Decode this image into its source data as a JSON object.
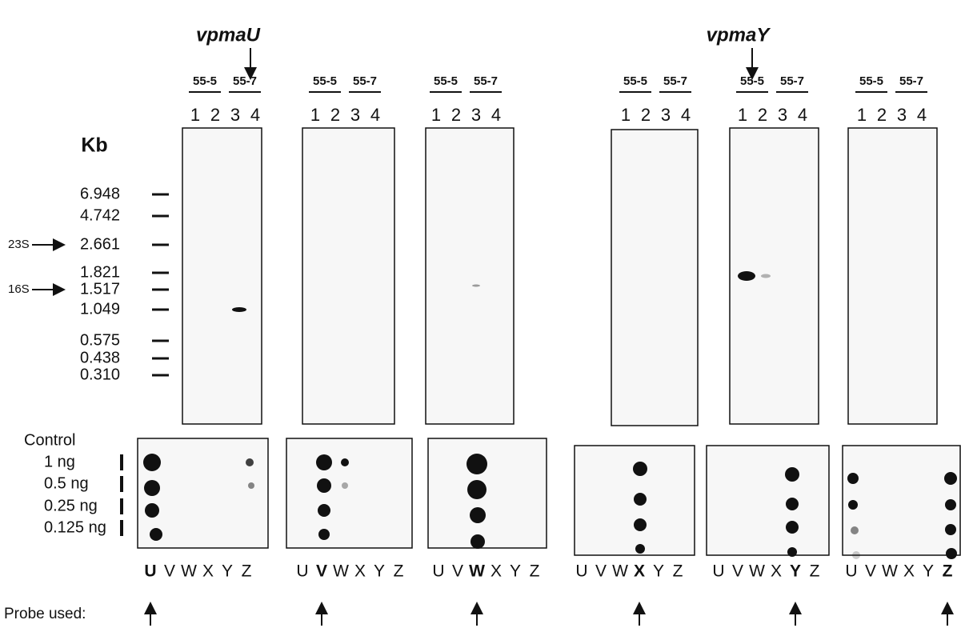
{
  "genes": [
    "vpmaU",
    "vpmaY"
  ],
  "size_unit": "Kb",
  "size_markers": [
    "6.948",
    "4.742",
    "2.661",
    "1.821",
    "1.517",
    "1.049",
    "0.575",
    "0.438",
    "0.310"
  ],
  "rrna_markers": [
    {
      "label": "23S",
      "marker": 2
    },
    {
      "label": "16S",
      "marker": 4
    }
  ],
  "control_label": "Control",
  "amounts": [
    "1 ng",
    "0.5 ng",
    "0.25 ng",
    "0.125 ng"
  ],
  "probe_label": "Probe used:",
  "panels": [
    {
      "strains": [
        "55-5",
        "55-7"
      ],
      "lanes": [
        "1",
        "2",
        "3",
        "4"
      ],
      "probes": [
        {
          "text": "U",
          "bold": true
        },
        {
          "text": "V"
        },
        {
          "text": "W"
        },
        {
          "text": "X"
        },
        {
          "text": "Y"
        },
        {
          "text": "Z"
        }
      ]
    },
    {
      "strains": [
        "55-5",
        "55-7"
      ],
      "lanes": [
        "1",
        "2",
        "3",
        "4"
      ],
      "probes": [
        {
          "text": "U"
        },
        {
          "text": "V",
          "bold": true
        },
        {
          "text": "W"
        },
        {
          "text": "X"
        },
        {
          "text": "Y"
        },
        {
          "text": "Z"
        }
      ]
    },
    {
      "strains": [
        "55-5",
        "55-7"
      ],
      "lanes": [
        "1",
        "2",
        "3",
        "4"
      ],
      "probes": [
        {
          "text": "U"
        },
        {
          "text": "V"
        },
        {
          "text": "W",
          "bold": true
        },
        {
          "text": "X"
        },
        {
          "text": "Y"
        },
        {
          "text": "Z"
        }
      ]
    },
    {
      "strains": [
        "55-5",
        "55-7"
      ],
      "lanes": [
        "1",
        "2",
        "3",
        "4"
      ],
      "probes": [
        {
          "text": "U"
        },
        {
          "text": "V"
        },
        {
          "text": "W"
        },
        {
          "text": "X",
          "bold": true
        },
        {
          "text": "Y"
        },
        {
          "text": "Z"
        }
      ]
    },
    {
      "strains": [
        "55-5",
        "55-7"
      ],
      "lanes": [
        "1",
        "2",
        "3",
        "4"
      ],
      "probes": [
        {
          "text": "U"
        },
        {
          "text": "V"
        },
        {
          "text": "W"
        },
        {
          "text": "X"
        },
        {
          "text": "Y",
          "bold": true
        },
        {
          "text": "Z"
        }
      ]
    },
    {
      "strains": [
        "55-5",
        "55-7"
      ],
      "lanes": [
        "1",
        "2",
        "3",
        "4"
      ],
      "probes": [
        {
          "text": "U"
        },
        {
          "text": "V"
        },
        {
          "text": "W"
        },
        {
          "text": "X"
        },
        {
          "text": "Y"
        },
        {
          "text": "Z",
          "bold": true
        }
      ]
    }
  ]
}
